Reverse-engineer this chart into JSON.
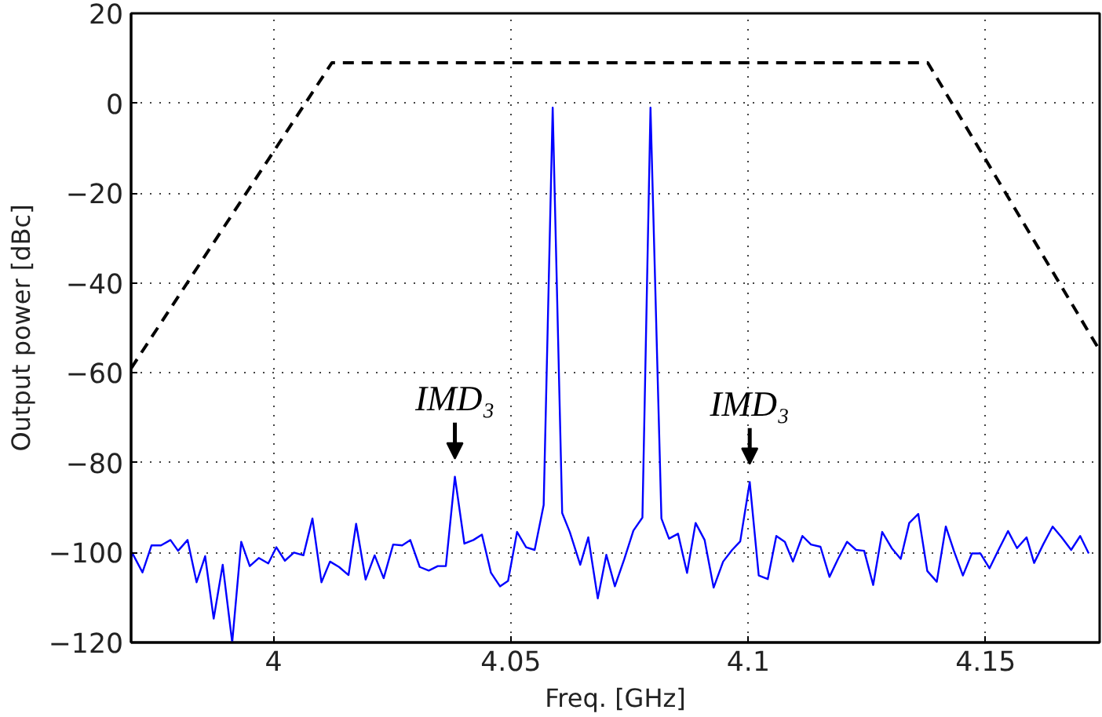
{
  "chart_data": {
    "type": "line",
    "xlabel": "Freq. [GHz]",
    "ylabel": "Output power [dBc]",
    "xlim": [
      3.97,
      4.174
    ],
    "ylim": [
      -120,
      20
    ],
    "xticks": [
      4,
      4.05,
      4.1,
      4.15
    ],
    "yticks": [
      -120,
      -100,
      -80,
      -60,
      -40,
      -20,
      0,
      20
    ],
    "grid": true,
    "series": [
      {
        "color": "#0000ff",
        "line_style": "solid",
        "x": [
          3.97,
          3.9702,
          3.9724,
          3.9743,
          3.9763,
          3.9783,
          3.9799,
          3.9819,
          3.9838,
          3.9856,
          3.9874,
          3.9893,
          3.9913,
          3.9932,
          3.995,
          3.9969,
          3.9989,
          4.0006,
          4.0024,
          4.0043,
          4.0063,
          4.0082,
          4.0101,
          4.0119,
          4.0138,
          4.0158,
          4.0174,
          4.0194,
          4.0213,
          4.0232,
          4.0252,
          4.0271,
          4.0288,
          4.0308,
          4.0327,
          4.0346,
          4.0363,
          4.0382,
          4.0402,
          4.0421,
          4.0439,
          4.0458,
          4.0477,
          4.0494,
          4.0513,
          4.0532,
          4.055,
          4.0569,
          4.0588,
          4.0608,
          4.0624,
          4.0646,
          4.0663,
          4.0683,
          4.0701,
          4.0719,
          4.0739,
          4.0758,
          4.0777,
          4.0794,
          4.0817,
          4.0833,
          4.0852,
          4.0871,
          4.0889,
          4.0908,
          4.0927,
          4.0947,
          4.0966,
          4.0983,
          4.1003,
          4.1022,
          4.1041,
          4.1059,
          4.1077,
          4.1094,
          4.1114,
          4.1132,
          4.1152,
          4.1171,
          4.1189,
          4.1208,
          4.1227,
          4.1244,
          4.1263,
          4.1282,
          4.1302,
          4.1321,
          4.1339,
          4.1358,
          4.1377,
          4.1397,
          4.1416,
          4.1433,
          4.1452,
          4.1471,
          4.1489,
          4.1508,
          4.1527,
          4.1547,
          4.1566,
          4.1586,
          4.1602,
          4.1621,
          4.1641,
          4.166,
          4.168,
          4.1699,
          4.1717
        ],
        "values": [
          -101.7,
          -100,
          -104.4,
          -98.4,
          -98.4,
          -97.2,
          -99.6,
          -97.2,
          -106.6,
          -100.8,
          -114.7,
          -102.7,
          -120,
          -97.6,
          -103,
          -101.2,
          -102.4,
          -98.8,
          -101.8,
          -100,
          -100.6,
          -92.4,
          -106.6,
          -102,
          -103.2,
          -105,
          -93.6,
          -106,
          -100.6,
          -105.7,
          -98.2,
          -98.4,
          -97.2,
          -103.2,
          -104,
          -103,
          -103,
          -83.1,
          -98,
          -97.2,
          -96,
          -104.5,
          -107.5,
          -106.3,
          -95.4,
          -98.8,
          -99.4,
          -89.4,
          -1,
          -91.2,
          -95.4,
          -102.7,
          -96.6,
          -110.2,
          -100.5,
          -107.5,
          -101.4,
          -95.1,
          -92.2,
          -1,
          -92.4,
          -96.9,
          -95.8,
          -104.5,
          -93.4,
          -97.2,
          -107.8,
          -102,
          -99.4,
          -97.5,
          -84.3,
          -105.1,
          -105.9,
          -96.3,
          -97.6,
          -102,
          -96.3,
          -98.2,
          -98.7,
          -105.4,
          -101.4,
          -97.6,
          -99.4,
          -99.6,
          -107.2,
          -95.4,
          -99,
          -101.4,
          -93.4,
          -91.4,
          -104.1,
          -106.5,
          -94.2,
          -99.6,
          -105.1,
          -100.2,
          -100.2,
          -103.5,
          -99.4,
          -95.2,
          -99,
          -96.6,
          -102.3,
          -98.2,
          -94.2,
          -96.6,
          -99.4,
          -96.3,
          -100.2
        ]
      },
      {
        "color": "#000000",
        "line_style": "dashed",
        "x": [
          3.97,
          4.0123,
          4.1378,
          4.174
        ],
        "values": [
          -59,
          9,
          9,
          -55
        ]
      }
    ],
    "annotations": [
      {
        "text": "IMD₃",
        "x": 4.0382,
        "y": -83.1
      },
      {
        "text": "IMD₃",
        "x": 4.1003,
        "y": -84.3
      }
    ]
  }
}
